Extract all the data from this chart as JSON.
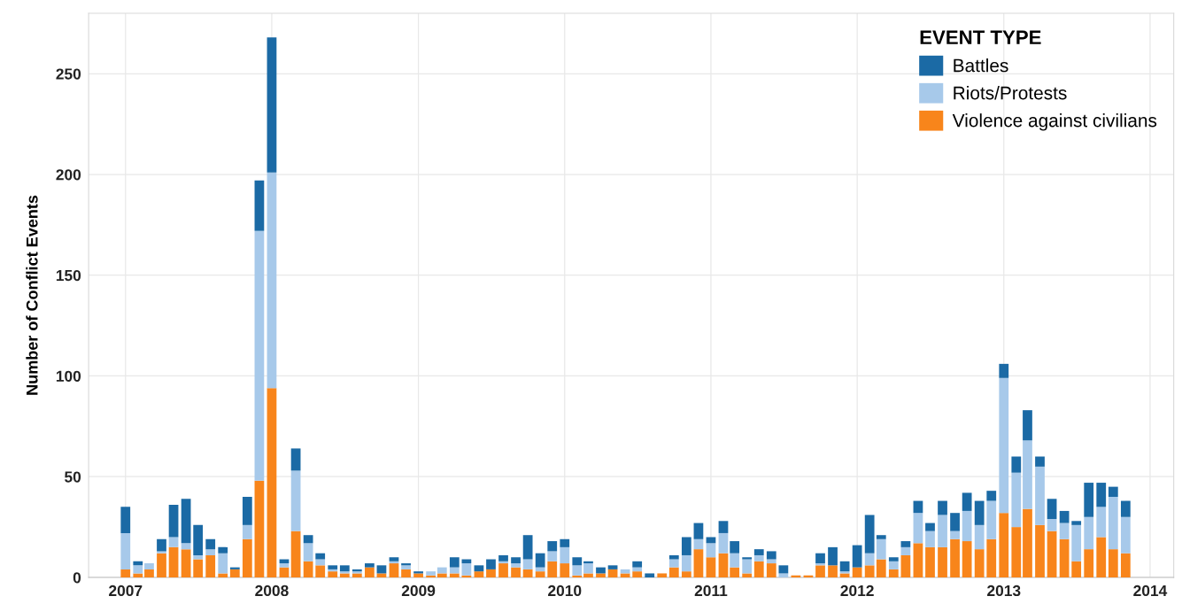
{
  "chart_data": {
    "type": "bar",
    "stacked": true,
    "ylabel": "Number of Conflict Events",
    "legend_title": "EVENT TYPE",
    "legend": "top right",
    "grid": true,
    "x": [
      "2007-01",
      "2007-02",
      "2007-03",
      "2007-04",
      "2007-05",
      "2007-06",
      "2007-07",
      "2007-08",
      "2007-09",
      "2007-10",
      "2007-11",
      "2007-12",
      "2008-01",
      "2008-02",
      "2008-03",
      "2008-04",
      "2008-05",
      "2008-06",
      "2008-07",
      "2008-08",
      "2008-09",
      "2008-10",
      "2008-11",
      "2008-12",
      "2009-01",
      "2009-02",
      "2009-03",
      "2009-04",
      "2009-05",
      "2009-06",
      "2009-07",
      "2009-08",
      "2009-09",
      "2009-10",
      "2009-11",
      "2009-12",
      "2010-01",
      "2010-02",
      "2010-03",
      "2010-04",
      "2010-05",
      "2010-06",
      "2010-07",
      "2010-08",
      "2010-09",
      "2010-10",
      "2010-11",
      "2010-12",
      "2011-01",
      "2011-02",
      "2011-03",
      "2011-04",
      "2011-05",
      "2011-06",
      "2011-07",
      "2011-08",
      "2011-09",
      "2011-10",
      "2011-11",
      "2011-12",
      "2012-01",
      "2012-02",
      "2012-03",
      "2012-04",
      "2012-05",
      "2012-06",
      "2012-07",
      "2012-08",
      "2012-09",
      "2012-10",
      "2012-11",
      "2012-12",
      "2013-01",
      "2013-02",
      "2013-03",
      "2013-04",
      "2013-05",
      "2013-06",
      "2013-07",
      "2013-08",
      "2013-09",
      "2013-10",
      "2013-11"
    ],
    "xlim": [
      "2006-10",
      "2014-03"
    ],
    "xticks": [
      "2007",
      "2008",
      "2009",
      "2010",
      "2011",
      "2012",
      "2013",
      "2014"
    ],
    "ylim": [
      0,
      280
    ],
    "yticks": [
      0,
      50,
      100,
      150,
      200,
      250
    ],
    "series": [
      {
        "name": "Violence against civilians",
        "color": "#f8851b",
        "values": [
          4,
          2,
          4,
          12,
          15,
          14,
          9,
          11,
          2,
          4,
          19,
          48,
          94,
          5,
          23,
          8,
          6,
          3,
          2,
          2,
          5,
          2,
          7,
          4,
          2,
          1,
          2,
          2,
          1,
          3,
          4,
          7,
          5,
          4,
          3,
          8,
          7,
          1,
          2,
          2,
          4,
          2,
          3,
          0,
          2,
          5,
          3,
          14,
          10,
          12,
          5,
          2,
          8,
          7,
          0,
          1,
          1,
          6,
          6,
          2,
          5,
          6,
          9,
          4,
          11,
          17,
          15,
          15,
          19,
          18,
          14,
          19,
          32,
          25,
          34,
          26,
          23,
          19,
          8,
          14,
          20,
          14,
          12
        ]
      },
      {
        "name": "Riots/Protests",
        "color": "#a7c9ea",
        "values": [
          18,
          4,
          3,
          1,
          5,
          3,
          2,
          3,
          10,
          0,
          7,
          124,
          107,
          2,
          30,
          9,
          3,
          1,
          1,
          1,
          0,
          0,
          1,
          2,
          0,
          2,
          3,
          3,
          6,
          0,
          0,
          1,
          2,
          5,
          2,
          5,
          8,
          5,
          5,
          0,
          0,
          2,
          2,
          0,
          0,
          4,
          8,
          5,
          7,
          10,
          7,
          7,
          3,
          2,
          2,
          0,
          0,
          1,
          0,
          1,
          0,
          6,
          10,
          4,
          4,
          15,
          8,
          16,
          4,
          15,
          12,
          19,
          67,
          27,
          34,
          29,
          6,
          8,
          18,
          16,
          15,
          26,
          18
        ]
      },
      {
        "name": "Battles",
        "color": "#1b6aa5",
        "values": [
          13,
          2,
          0,
          6,
          16,
          22,
          15,
          5,
          3,
          1,
          14,
          25,
          67,
          2,
          11,
          4,
          3,
          2,
          3,
          1,
          2,
          4,
          2,
          1,
          1,
          0,
          0,
          5,
          2,
          3,
          5,
          3,
          3,
          12,
          7,
          5,
          4,
          4,
          1,
          3,
          2,
          0,
          3,
          2,
          0,
          2,
          9,
          8,
          3,
          6,
          6,
          1,
          3,
          4,
          4,
          0,
          0,
          5,
          9,
          5,
          11,
          19,
          2,
          2,
          3,
          6,
          4,
          7,
          9,
          9,
          12,
          5,
          7,
          8,
          15,
          5,
          10,
          6,
          2,
          17,
          12,
          5,
          8
        ]
      }
    ]
  }
}
